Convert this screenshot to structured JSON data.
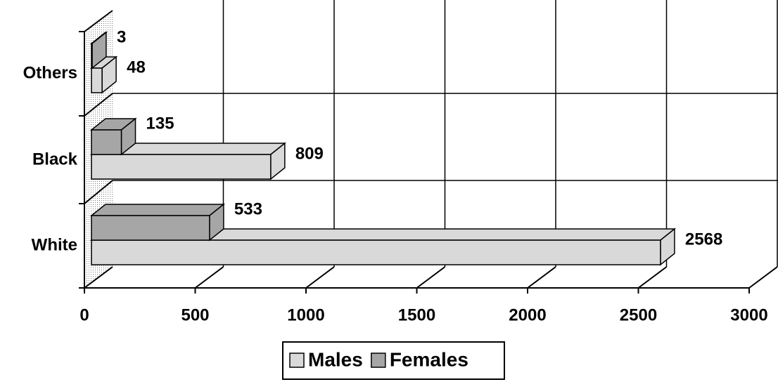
{
  "chart_data": {
    "type": "bar3d",
    "orientation": "horizontal",
    "categories": [
      "White",
      "Black",
      "Others"
    ],
    "series": [
      {
        "name": "Males",
        "color": "#d9d9d9",
        "values": [
          2568,
          809,
          48
        ]
      },
      {
        "name": "Females",
        "color": "#a6a6a6",
        "values": [
          533,
          135,
          3
        ]
      }
    ],
    "xlim": [
      0,
      3000
    ],
    "xticks": [
      0,
      500,
      1000,
      1500,
      2000,
      2500,
      3000
    ],
    "grid": true,
    "legend": "bottom"
  }
}
